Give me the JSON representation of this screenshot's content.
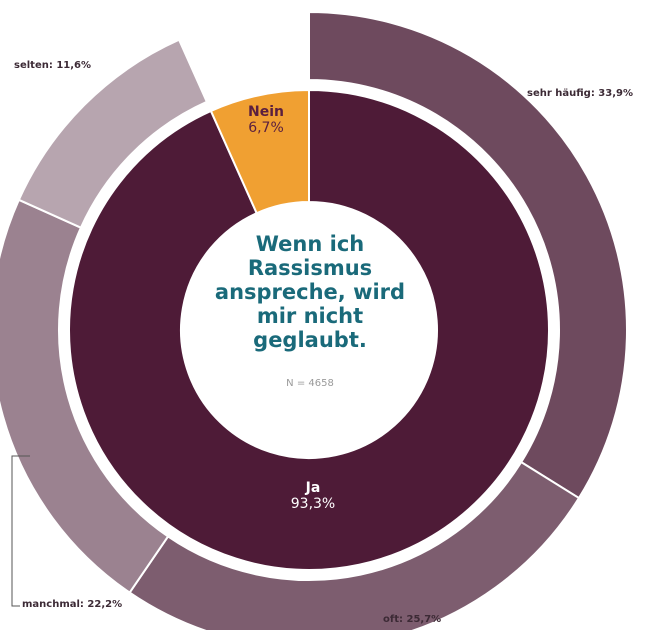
{
  "chart_data": {
    "type": "pie",
    "variant": "nested-donut",
    "title": "Wenn ich Rassismus anspreche, wird mir nicht geglaubt.",
    "note": "N = 4658",
    "inner_ring": {
      "categories": [
        "Ja",
        "Nein"
      ],
      "values": [
        93.3,
        6.7
      ],
      "display": [
        "93,3%",
        "6,7%"
      ]
    },
    "outer_ring": {
      "categories": [
        "sehr häufig",
        "oft",
        "manchmal",
        "selten"
      ],
      "values": [
        33.9,
        25.7,
        22.2,
        11.6
      ],
      "display": [
        "sehr häufig: 33,9%",
        "oft: 25,7%",
        "manchmal: 22,2%",
        "selten: 11,6%"
      ]
    },
    "colors": {
      "ja": "#4e1b37",
      "nein": "#f0a032",
      "sehr_haeufig": "#6e4a5e",
      "oft": "#7d5d6f",
      "manchmal": "#9b8290",
      "selten": "#b7a5af",
      "title": "#1a6a7a",
      "label_on_dark": "#ffffff",
      "label_on_orange": "#5a1f3f"
    }
  }
}
